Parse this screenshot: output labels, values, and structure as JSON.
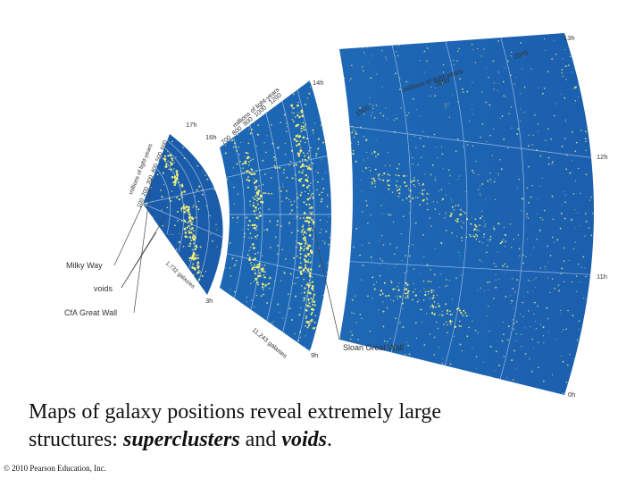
{
  "figure": {
    "hours": {
      "h13": "13h",
      "h12": "12h",
      "h11": "11h",
      "h0": "0h",
      "h14": "14h",
      "h17": "17h",
      "h16": "16h",
      "h3": "3h",
      "h9": "9h"
    },
    "outer": {
      "unit": "millions of light-years",
      "ticks": [
        "1500",
        "2000",
        "2500"
      ]
    },
    "middle": {
      "unit": "millions of light-years",
      "ticks": [
        "700",
        "800",
        "900",
        "1000",
        "1200"
      ],
      "count": "11,243 galaxies"
    },
    "inner": {
      "unit": "millions of light-years",
      "ticks": [
        "100",
        "200",
        "300",
        "400",
        "500",
        "600"
      ],
      "count": "1,732 galaxies"
    },
    "callouts": {
      "milky_way": "Milky Way",
      "voids": "voids",
      "cfa_great_wall": "CfA Great Wall",
      "sloan_great_wall": "Sloan Great Wall"
    },
    "colors": {
      "map": "#1f6fc0",
      "map_dark": "#134f96",
      "galaxy": "#f4f07a",
      "ring": "#bcd6f4"
    }
  },
  "caption": {
    "line1": "Maps of galaxy positions reveal extremely large",
    "line2_prefix": "structures: ",
    "superclusters": "superclusters",
    "joiner": " and ",
    "voids": "voids",
    "end": "."
  },
  "copyright": "© 2010 Pearson Education, Inc."
}
